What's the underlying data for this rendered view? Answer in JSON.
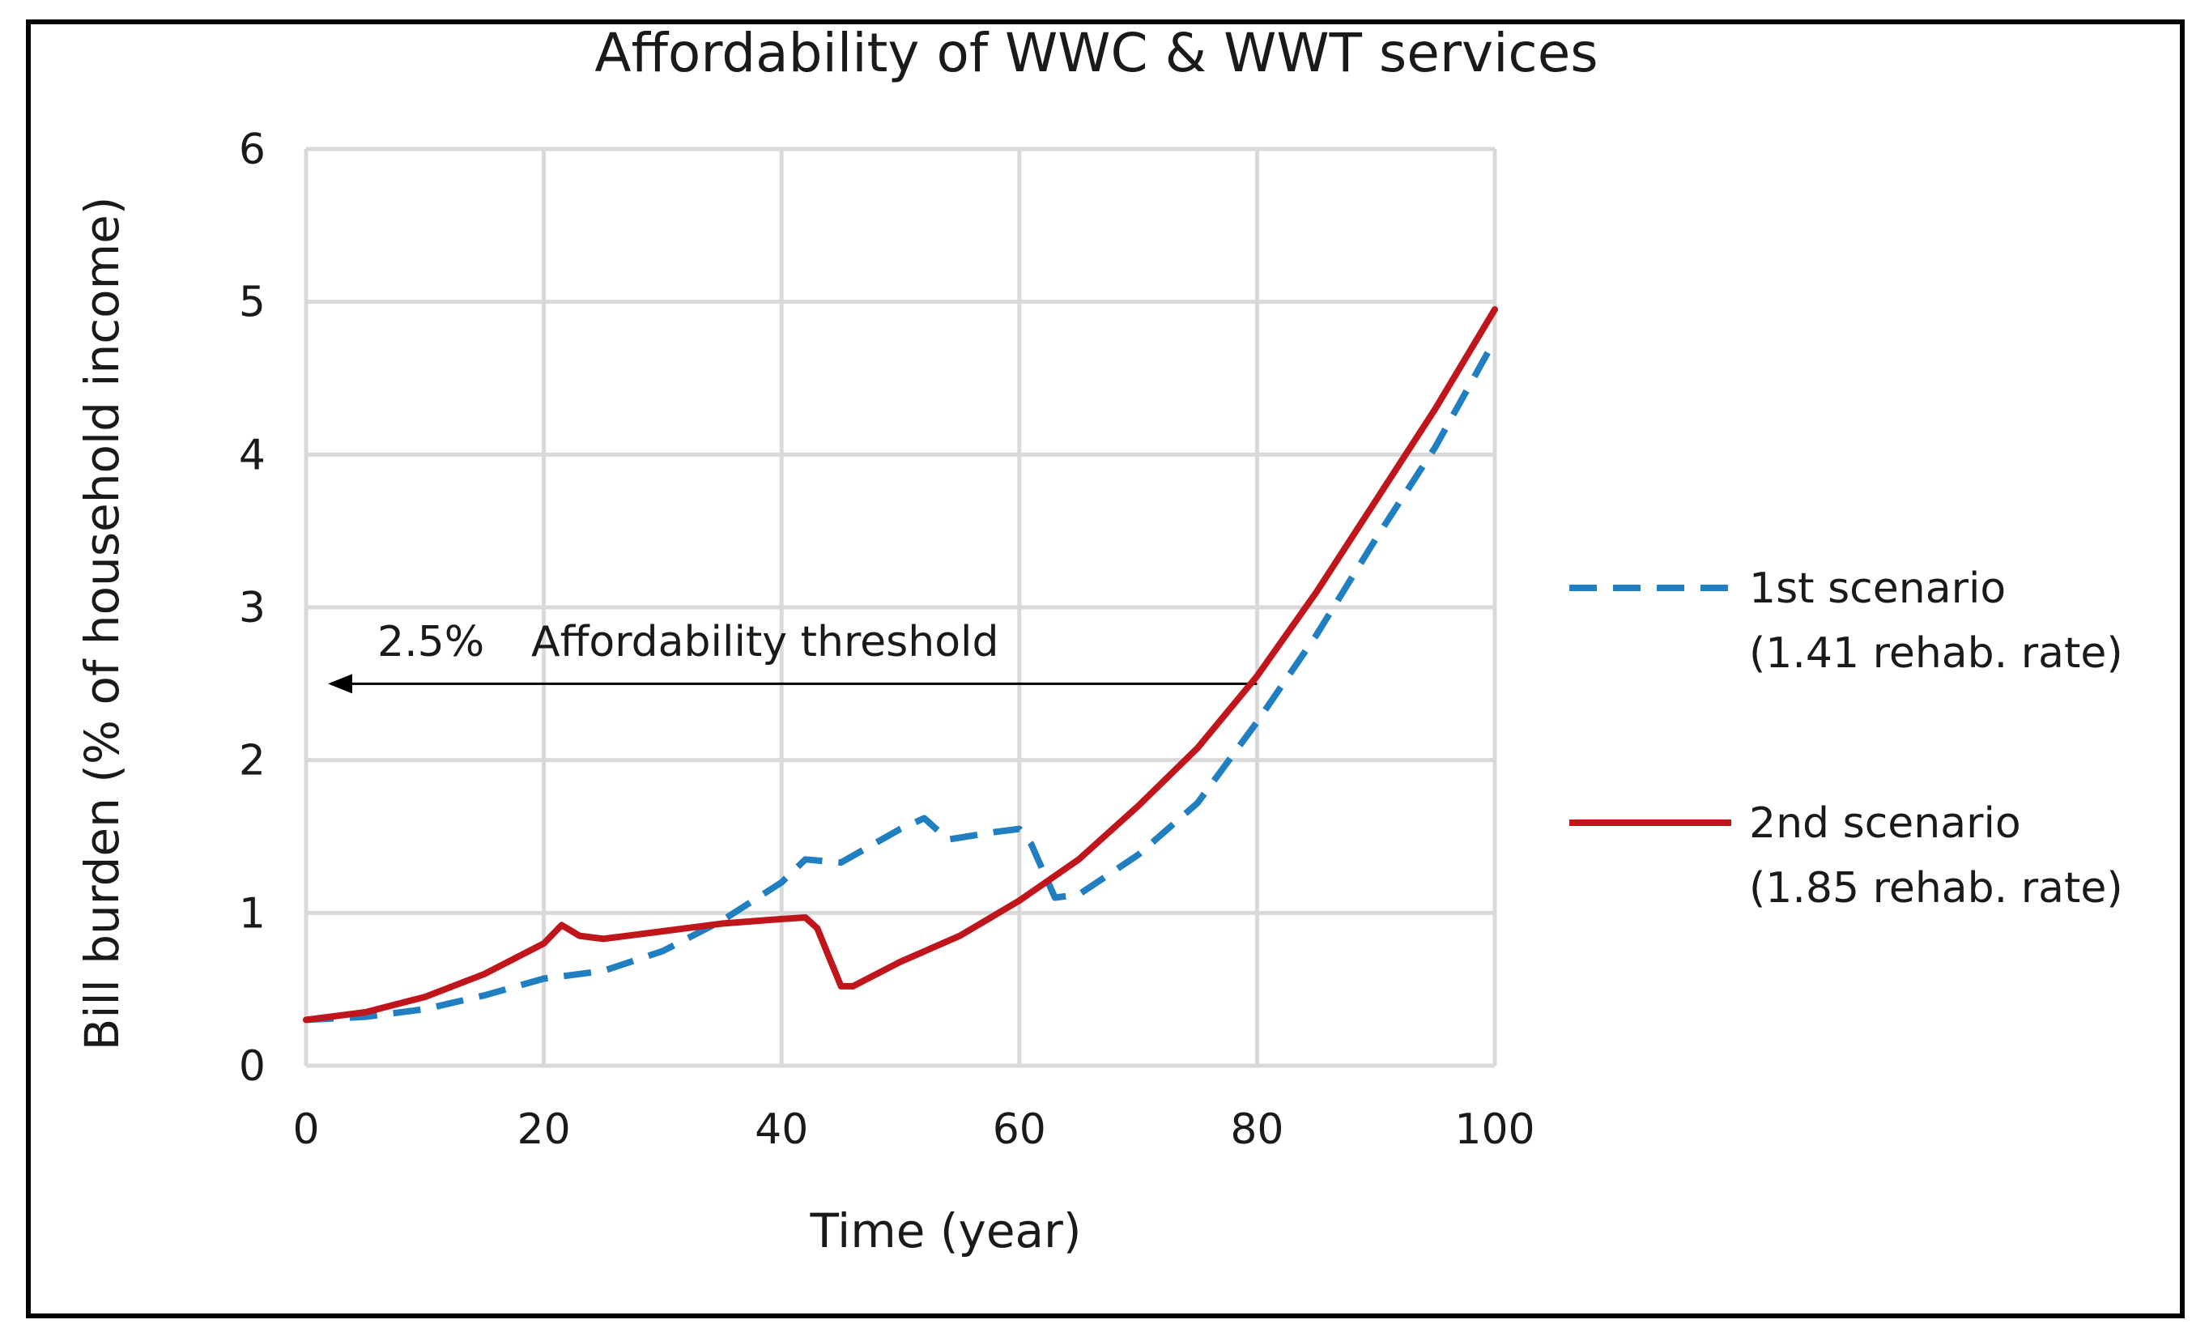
{
  "chart_data": {
    "type": "line",
    "title": "Affordability of WWC & WWT services",
    "xlabel": "Time (year)",
    "ylabel": "Bill burden (% of household income)",
    "xlim": [
      0,
      100
    ],
    "ylim": [
      0,
      6
    ],
    "x_ticks": [
      0,
      20,
      40,
      60,
      80,
      100
    ],
    "y_ticks": [
      0,
      1,
      2,
      3,
      4,
      5,
      6
    ],
    "grid": true,
    "legend_position": "right",
    "series": [
      {
        "name": "1st scenario",
        "name_line2": "(1.41 rehab. rate)",
        "color": "#1f7fc1",
        "style": "dashed",
        "points": [
          [
            0,
            0.3
          ],
          [
            5,
            0.32
          ],
          [
            10,
            0.37
          ],
          [
            15,
            0.46
          ],
          [
            20,
            0.57
          ],
          [
            25,
            0.62
          ],
          [
            30,
            0.75
          ],
          [
            35,
            0.95
          ],
          [
            40,
            1.2
          ],
          [
            42,
            1.35
          ],
          [
            45,
            1.33
          ],
          [
            50,
            1.55
          ],
          [
            52,
            1.62
          ],
          [
            54,
            1.48
          ],
          [
            58,
            1.53
          ],
          [
            60,
            1.55
          ],
          [
            61,
            1.45
          ],
          [
            63,
            1.1
          ],
          [
            65,
            1.12
          ],
          [
            70,
            1.38
          ],
          [
            75,
            1.72
          ],
          [
            80,
            2.25
          ],
          [
            85,
            2.82
          ],
          [
            90,
            3.45
          ],
          [
            95,
            4.05
          ],
          [
            100,
            4.75
          ]
        ]
      },
      {
        "name": "2nd scenario",
        "name_line2": "(1.85 rehab. rate)",
        "color": "#c0151b",
        "style": "solid",
        "points": [
          [
            0,
            0.3
          ],
          [
            5,
            0.35
          ],
          [
            10,
            0.45
          ],
          [
            15,
            0.6
          ],
          [
            20,
            0.8
          ],
          [
            21.5,
            0.92
          ],
          [
            23,
            0.85
          ],
          [
            25,
            0.83
          ],
          [
            30,
            0.88
          ],
          [
            35,
            0.93
          ],
          [
            40,
            0.96
          ],
          [
            42,
            0.97
          ],
          [
            43,
            0.9
          ],
          [
            45,
            0.52
          ],
          [
            46,
            0.52
          ],
          [
            48,
            0.6
          ],
          [
            50,
            0.68
          ],
          [
            55,
            0.85
          ],
          [
            60,
            1.08
          ],
          [
            65,
            1.35
          ],
          [
            70,
            1.7
          ],
          [
            75,
            2.08
          ],
          [
            80,
            2.55
          ],
          [
            85,
            3.1
          ],
          [
            90,
            3.7
          ],
          [
            95,
            4.3
          ],
          [
            100,
            4.95
          ]
        ]
      }
    ],
    "annotation": {
      "value_label": "2.5%",
      "text": "Affordability threshold",
      "y": 2.5,
      "x_from": 80,
      "x_to": 0
    }
  }
}
